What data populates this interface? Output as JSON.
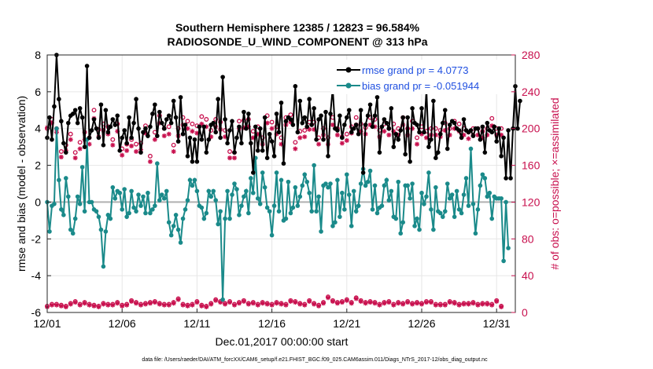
{
  "chart_data": {
    "type": "line",
    "title": "Southern Hemisphere 12385 / 12823 = 96.584%",
    "subtitle": "RADIOSONDE_U_WIND_COMPONENT @ 313 hPa",
    "xlabel": "Dec.01,2017 00:00:00 start",
    "ylabel": "rmse and bias (model - observation)",
    "ylabel_right": "# of obs: o=possible; ×=assimilated",
    "x_tick_labels": [
      "12/01",
      "12/06",
      "12/11",
      "12/16",
      "12/21",
      "12/26",
      "12/31"
    ],
    "x_tick_values": [
      0,
      5,
      10,
      15,
      20,
      25,
      30
    ],
    "xlim": [
      0,
      31.25
    ],
    "ylim": [
      -6,
      8
    ],
    "y_ticks": [
      "-6",
      "-4",
      "-2",
      "0",
      "2",
      "4",
      "6",
      "8"
    ],
    "y_tick_values": [
      -6,
      -4,
      -2,
      0,
      2,
      4,
      6,
      8
    ],
    "ylim_right": [
      0,
      280
    ],
    "y_ticks_right": [
      "0",
      "40",
      "80",
      "120",
      "160",
      "200",
      "240",
      "280"
    ],
    "y_tick_values_right": [
      0,
      40,
      80,
      120,
      160,
      200,
      240,
      280
    ],
    "footnote": "data file: /Users/raeder/DAI/ATM_forcXX/CAM6_setup/f.e21.FHIST_BGC.f09_025.CAM6assim.011/Diags_NTrS_2017-12/obs_diag_output.nc",
    "series": [
      {
        "name": "rmse grand pr = 4.0773",
        "color": "#000000",
        "values": [
          3.5,
          4.6,
          3.4,
          5.2,
          8.0,
          5.6,
          4.4,
          3.2,
          2.7,
          4.3,
          4.7,
          4.8,
          5.0,
          4.3,
          5.1,
          4.6,
          3.0,
          7.4,
          3.5,
          3.9,
          4.5,
          4.0,
          3.5,
          5.3,
          3.1,
          5.0,
          3.8,
          4.1,
          4.5,
          4.2,
          4.7,
          2.8,
          3.5,
          3.9,
          3.2,
          4.6,
          3.5,
          4.3,
          5.6,
          4.0,
          2.7,
          3.8,
          4.0,
          3.6,
          4.1,
          4.8,
          5.3,
          3.6,
          4.9,
          4.3,
          4.0,
          4.5,
          4.7,
          4.3,
          5.5,
          4.6,
          3.3,
          5.7,
          3.7,
          4.2,
          2.5,
          3.5,
          2.2,
          3.4,
          2.2,
          4.1,
          3.4,
          4.1,
          2.7,
          3.4,
          4.2,
          4.3,
          3.8,
          5.6,
          3.5,
          6.8,
          4.5,
          3.2,
          3.9,
          4.4,
          2.7,
          3.5,
          4.1,
          3.2,
          4.9,
          4.0,
          4.8,
          3.2,
          1.6,
          4.1,
          2.8,
          4.0,
          2.8,
          4.6,
          2.4,
          3.7,
          3.3,
          2.5,
          4.8,
          3.8,
          5.4,
          2.1,
          4.4,
          4.6,
          4.5,
          4.2,
          6.3,
          3.8,
          5.5,
          4.3,
          4.6,
          4.1,
          5.6,
          4.2,
          5.1,
          3.4,
          4.5,
          4.7,
          3.4,
          4.9,
          2.5,
          4.8,
          6.2,
          4.0,
          3.9,
          4.7,
          3.5,
          4.2,
          4.6,
          5.0,
          3.8,
          4.0,
          4.2,
          3.7,
          5.0,
          1.6,
          4.2,
          4.7,
          5.3,
          4.1,
          4.7,
          5.7,
          2.7,
          4.1,
          4.5,
          4.3,
          4.0,
          5.1,
          3.0,
          3.7,
          3.4,
          3.9,
          4.6,
          2.6,
          4.6,
          2.2,
          5.1,
          4.3,
          4.2,
          3.8,
          5.1,
          3.8,
          6.1,
          3.0,
          3.4,
          5.5,
          2.4,
          2.7,
          3.7,
          4.3,
          5.0,
          2.9,
          4.2,
          4.4,
          4.3,
          4.0,
          3.9,
          3.5,
          4.5,
          3.9,
          3.8,
          3.9,
          3.6,
          4.0,
          4.0,
          3.4,
          4.1,
          2.7,
          4.3,
          3.9,
          3.8,
          4.1,
          3.3,
          4.0,
          2.5,
          3.5,
          1.3,
          3.9,
          1.3,
          4.0,
          6.3,
          4.0,
          5.5
        ]
      },
      {
        "name": "bias grand pr = -0.051944",
        "color": "#1a8a8a",
        "values": [
          0.0,
          -1.6,
          -0.2,
          -0.1,
          4.0,
          1.2,
          -0.4,
          -0.7,
          1.3,
          0.3,
          -1.5,
          -1.7,
          -0.9,
          0.3,
          -0.1,
          1.9,
          -0.5,
          3.4,
          0.0,
          0.0,
          -0.4,
          -0.5,
          -0.8,
          -1.5,
          -3.5,
          -1.6,
          -0.7,
          -0.9,
          0.8,
          0.2,
          0.6,
          0.5,
          -0.4,
          0.7,
          -0.8,
          -0.6,
          0.6,
          -0.3,
          -0.5,
          0.4,
          -0.2,
          0.3,
          -0.6,
          0.5,
          -0.6,
          -0.4,
          -0.2,
          2.1,
          0.1,
          0.4,
          0.2,
          0.6,
          -1.1,
          -1.8,
          -1.3,
          -0.7,
          -1.5,
          -2.2,
          -0.9,
          -0.4,
          0.1,
          1.2,
          0.9,
          1.2,
          0.6,
          -0.2,
          -0.3,
          -0.9,
          -0.6,
          0.6,
          0.3,
          0.6,
          0.1,
          -1.2,
          -0.5,
          -5.3,
          -0.9,
          0.6,
          -0.9,
          0.4,
          1.0,
          0.7,
          -0.7,
          -0.2,
          0.3,
          0.6,
          -0.6,
          1.3,
          0.5,
          2.4,
          0.2,
          -0.1,
          1.6,
          0.8,
          -0.3,
          -0.5,
          -1.8,
          -0.2,
          1.6,
          -0.5,
          1.2,
          -1.0,
          -0.9,
          1.1,
          -0.6,
          -0.3,
          0.8,
          -0.2,
          0.3,
          0.9,
          1.5,
          1.1,
          0.5,
          -0.5,
          2.0,
          -0.5,
          0.3,
          -1.6,
          0.9,
          1.0,
          0.8,
          1.0,
          -1.3,
          -1.1,
          1.2,
          -0.8,
          0.5,
          -0.4,
          1.5,
          0.4,
          -1.3,
          0.6,
          -0.5,
          -0.2,
          1.0,
          1.8,
          0.9,
          1.1,
          1.7,
          -0.4,
          0.9,
          -0.6,
          -0.3,
          -0.2,
          0.9,
          1.2,
          0.1,
          0.6,
          -0.8,
          -0.9,
          1.1,
          -1.7,
          -1.1,
          0.9,
          0.9,
          0.2,
          1.0,
          -1.3,
          -0.9,
          -1.5,
          0.5,
          -0.1,
          0.3,
          1.6,
          -0.4,
          -1.5,
          0.8,
          -0.5,
          -0.6,
          -0.8,
          -0.5,
          1.0,
          0.2,
          0.4,
          -0.8,
          0.6,
          -0.4,
          -0.6,
          0.4,
          1.3,
          -0.2,
          2.9,
          -0.1,
          -1.7,
          -0.4,
          0.9,
          1.5,
          1.3,
          0.3,
          0.5,
          -0.9,
          0.3,
          0.2,
          0.2,
          0.2,
          -3.2,
          0.0,
          -2.5
        ]
      }
    ],
    "obs_possible": [
      200,
      150,
      210,
      190,
      200,
      180,
      175,
      170,
      182,
      192,
      194,
      183,
      174,
      205,
      185,
      208,
      196,
      172,
      190,
      178,
      220,
      200,
      199,
      178,
      205,
      185,
      202,
      195,
      188,
      188,
      205,
      196,
      178,
      200,
      183,
      170,
      188,
      215,
      183,
      200,
      184,
      199,
      203,
      180,
      170,
      183,
      196,
      208,
      214,
      162,
      200,
      200,
      202,
      168,
      182,
      198,
      200,
      170,
      212,
      180,
      208,
      190,
      205,
      179,
      203,
      205,
      213,
      200,
      210,
      187,
      198,
      193,
      210,
      199,
      207,
      185,
      198,
      213,
      175,
      207,
      174,
      220,
      208,
      208,
      209,
      204,
      210,
      210,
      197,
      202,
      202,
      207,
      190,
      203,
      214,
      175,
      207,
      215,
      202,
      210,
      190,
      201,
      212,
      202,
      215,
      198,
      185,
      205,
      197,
      180,
      198,
      200,
      207,
      197,
      207,
      185,
      190,
      210,
      200,
      204,
      190,
      197,
      212,
      200,
      200,
      203,
      191,
      214,
      194,
      214,
      202,
      198,
      212,
      192,
      205,
      198,
      201,
      208,
      212,
      220,
      210,
      190,
      198,
      200,
      205,
      213,
      200,
      185,
      205,
      202,
      200,
      205,
      212,
      213,
      200,
      200,
      208,
      212,
      190,
      202,
      202,
      205,
      197,
      205,
      200,
      210,
      200,
      203,
      198,
      206,
      206,
      209,
      200,
      200,
      208,
      200,
      205,
      198,
      200,
      200,
      196,
      199,
      200,
      202,
      200,
      198,
      197,
      200,
      200,
      208,
      211,
      201,
      200,
      203,
      200,
      200
    ],
    "obs_assimilated": [
      201,
      143,
      206,
      182,
      196,
      174,
      169,
      163,
      176,
      186,
      188,
      176,
      168,
      197,
      178,
      200,
      188,
      166,
      183,
      171,
      211,
      193,
      191,
      172,
      198,
      178,
      194,
      188,
      182,
      180,
      197,
      188,
      171,
      193,
      176,
      163,
      181,
      207,
      175,
      193,
      177,
      191,
      195,
      173,
      164,
      176,
      188,
      200,
      206,
      156,
      192,
      192,
      194,
      162,
      175,
      190,
      192,
      164,
      204,
      173,
      200,
      183,
      197,
      172,
      195,
      197,
      205,
      192,
      202,
      180,
      191,
      186,
      202,
      192,
      199,
      178,
      191,
      205,
      168,
      199,
      168,
      211,
      200,
      200,
      201,
      196,
      202,
      202,
      190,
      195,
      194,
      199,
      183,
      195,
      206,
      168,
      200,
      207,
      194,
      202,
      183,
      194,
      204,
      194,
      207,
      191,
      178,
      197,
      190,
      173,
      191,
      193,
      199,
      190,
      199,
      178,
      183,
      202,
      193,
      197,
      183,
      190,
      204,
      193,
      193,
      195,
      184,
      206,
      187,
      206,
      195,
      191,
      204,
      185,
      197,
      191,
      194,
      200,
      204,
      211,
      202,
      183,
      191,
      193,
      197,
      205,
      193,
      178,
      197,
      194,
      193,
      197,
      204,
      205,
      193,
      193,
      200,
      204,
      183,
      194,
      194,
      197,
      190,
      197,
      193,
      202,
      193,
      195,
      191,
      198,
      198,
      201,
      193,
      193,
      200,
      193,
      197,
      191,
      193,
      193,
      189,
      192,
      193,
      194,
      193,
      191,
      190,
      193,
      193,
      200,
      203,
      194,
      193,
      195,
      193,
      193
    ],
    "low_possible": [
      7,
      9,
      9,
      7,
      9,
      10,
      8,
      6,
      7,
      9,
      10,
      8,
      12,
      15,
      9,
      8,
      11,
      13,
      9,
      7,
      8,
      11,
      7,
      8,
      10,
      7,
      9,
      8,
      9,
      7,
      11,
      9,
      8,
      10,
      9,
      12,
      13,
      8,
      11,
      9,
      9,
      14,
      10,
      8,
      11,
      9,
      12,
      7,
      10,
      8,
      9,
      11,
      9,
      8,
      11,
      9,
      15,
      13,
      9,
      12,
      8,
      10,
      9,
      11,
      12,
      9,
      8,
      11,
      7,
      9,
      10,
      10,
      14,
      12,
      12,
      9,
      10,
      11,
      12,
      8,
      9,
      9,
      11,
      8,
      13,
      12,
      10,
      12,
      11,
      12,
      9,
      8,
      11,
      9,
      10,
      12,
      9,
      12,
      11,
      9,
      10,
      12,
      9,
      14,
      13,
      11,
      12,
      9,
      10,
      12,
      9,
      20,
      13,
      11,
      10,
      13,
      8,
      11,
      11,
      10,
      17,
      12,
      13,
      10,
      11,
      9,
      12,
      11,
      14,
      10,
      11,
      9,
      16,
      11,
      13,
      12,
      11,
      9,
      12,
      10,
      11,
      10,
      9,
      13,
      11,
      10,
      12,
      13,
      9,
      12,
      11,
      14,
      10,
      9,
      12,
      11,
      10,
      13,
      11,
      9,
      10,
      11,
      12,
      10,
      12,
      13,
      9,
      11,
      9,
      11,
      9,
      10,
      12,
      13,
      11,
      12,
      9,
      9,
      10,
      11,
      10,
      12,
      11,
      13,
      9,
      12,
      10,
      11,
      10,
      12,
      9,
      11,
      13,
      10,
      7,
      3
    ]
  }
}
